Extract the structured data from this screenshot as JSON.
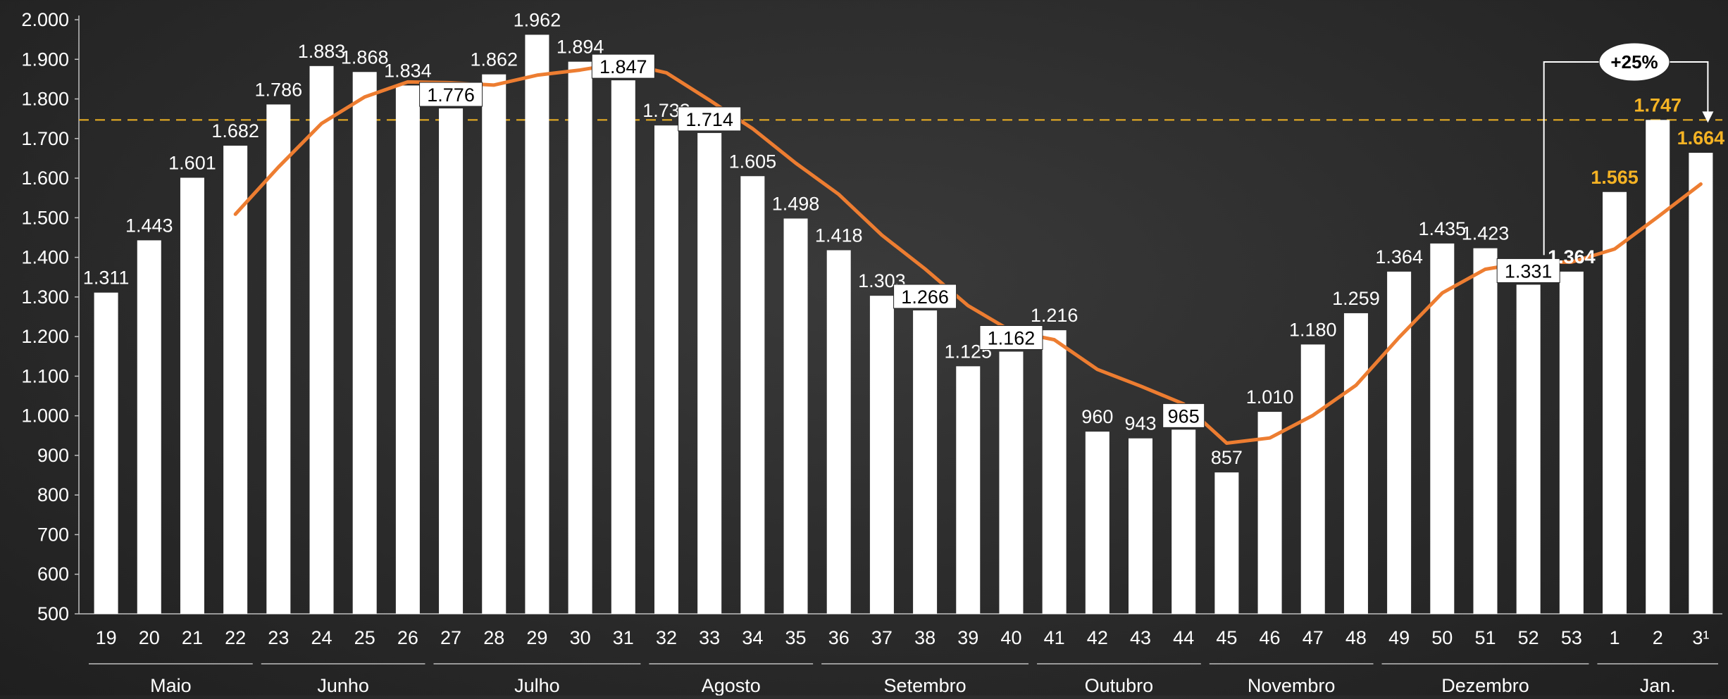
{
  "chart_data": {
    "type": "bar",
    "x": [
      "19",
      "20",
      "21",
      "22",
      "23",
      "24",
      "25",
      "26",
      "27",
      "28",
      "29",
      "30",
      "31",
      "32",
      "33",
      "34",
      "35",
      "36",
      "37",
      "38",
      "39",
      "40",
      "41",
      "42",
      "43",
      "44",
      "45",
      "46",
      "47",
      "48",
      "49",
      "50",
      "51",
      "52",
      "53",
      "1",
      "2",
      "3¹"
    ],
    "values": [
      1311,
      1443,
      1601,
      1682,
      1786,
      1883,
      1868,
      1834,
      1776,
      1862,
      1962,
      1894,
      1847,
      1733,
      1714,
      1605,
      1498,
      1418,
      1303,
      1266,
      1125,
      1162,
      1216,
      960,
      943,
      965,
      857,
      1010,
      1180,
      1259,
      1364,
      1435,
      1423,
      1331,
      1364,
      1565,
      1747,
      1664
    ],
    "value_labels": [
      "1.311",
      "1.443",
      "1.601",
      "1.682",
      "1.786",
      "1.883",
      "1.868",
      "1.834",
      "1.776",
      "1.862",
      "1.962",
      "1.894",
      "1.847",
      "1.733",
      "1.714",
      "1.605",
      "1.498",
      "1.418",
      "1.303",
      "1.266",
      "1.125",
      "1.162",
      "1.216",
      "960",
      "943",
      "965",
      "857",
      "1.010",
      "1.180",
      "1.259",
      "1.364",
      "1.435",
      "1.423",
      "1.331",
      "1.364",
      "1.565",
      "1.747",
      "1.664"
    ],
    "boxed_labels": [
      8,
      12,
      14,
      19,
      21,
      25,
      33
    ],
    "highlight_labels": [
      35,
      36,
      37
    ],
    "bold_labels": [
      34
    ],
    "moving_average": [
      null,
      null,
      null,
      1509,
      1628,
      1738,
      1805,
      1843,
      1841,
      1835,
      1860,
      1873,
      1891,
      1866,
      1797,
      1725,
      1638,
      1559,
      1456,
      1371,
      1278,
      1214,
      1192,
      1117,
      1075,
      1030,
      931,
      944,
      1001,
      1077,
      1198,
      1310,
      1370,
      1388,
      1388,
      1421,
      1502,
      1585
    ],
    "reference_line": 1747,
    "ylim": [
      500,
      2000
    ],
    "yticks": [
      500,
      600,
      700,
      800,
      900,
      1000,
      1100,
      1200,
      1300,
      1400,
      1500,
      1600,
      1700,
      1800,
      1900,
      2000
    ],
    "ytick_labels": [
      "500",
      "600",
      "700",
      "800",
      "900",
      "1.000",
      "1.100",
      "1.200",
      "1.300",
      "1.400",
      "1.500",
      "1.600",
      "1.700",
      "1.800",
      "1.900",
      "2.000"
    ],
    "months": [
      {
        "label": "Maio",
        "start": 0,
        "end": 3
      },
      {
        "label": "Junho",
        "start": 4,
        "end": 7
      },
      {
        "label": "Julho",
        "start": 8,
        "end": 12
      },
      {
        "label": "Agosto",
        "start": 13,
        "end": 16
      },
      {
        "label": "Setembro",
        "start": 17,
        "end": 21
      },
      {
        "label": "Outubro",
        "start": 22,
        "end": 25
      },
      {
        "label": "Novembro",
        "start": 26,
        "end": 29
      },
      {
        "label": "Dezembro",
        "start": 30,
        "end": 34
      },
      {
        "label": "Jan.",
        "start": 35,
        "end": 37
      }
    ],
    "annotation": {
      "label": "+25%",
      "from_index": 33,
      "to_index": 37
    },
    "colors": {
      "bars": "#ffffff",
      "line": "#ed7d31",
      "reference": "#f0b323",
      "highlight": "#f5b324",
      "text": "#ffffff",
      "axis": "#bfbfbf"
    }
  }
}
